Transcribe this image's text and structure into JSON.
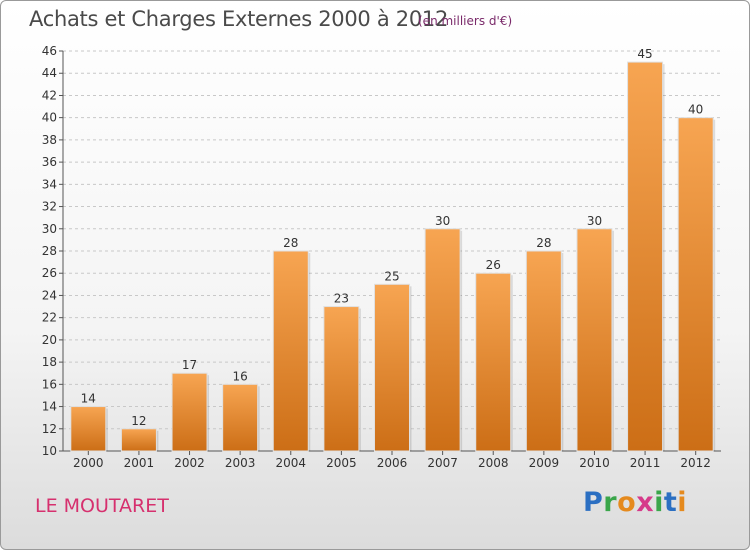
{
  "header": {
    "title": "Achats et Charges Externes 2000 à 2012",
    "subtitle": "(en milliers d'€)"
  },
  "footer": {
    "location": "LE MOUTARET",
    "logo": "Proxiti"
  },
  "colors": {
    "bar_top": "#f7a552",
    "bar_bottom": "#cc6e16",
    "grid": "#c8c8c8",
    "axis": "#555555"
  },
  "chart_data": {
    "type": "bar",
    "categories": [
      "2000",
      "2001",
      "2002",
      "2003",
      "2004",
      "2005",
      "2006",
      "2007",
      "2008",
      "2009",
      "2010",
      "2011",
      "2012"
    ],
    "values": [
      14,
      12,
      17,
      16,
      28,
      23,
      25,
      30,
      26,
      28,
      30,
      45,
      40
    ],
    "title": "Achats et Charges Externes 2000 à 2012",
    "subtitle": "(en milliers d'€)",
    "xlabel": "",
    "ylabel": "",
    "ylim": [
      10,
      46
    ],
    "yticks": [
      10,
      12,
      14,
      16,
      18,
      20,
      22,
      24,
      26,
      28,
      30,
      32,
      34,
      36,
      38,
      40,
      42,
      44,
      46
    ],
    "grid": true,
    "legend": "none"
  }
}
